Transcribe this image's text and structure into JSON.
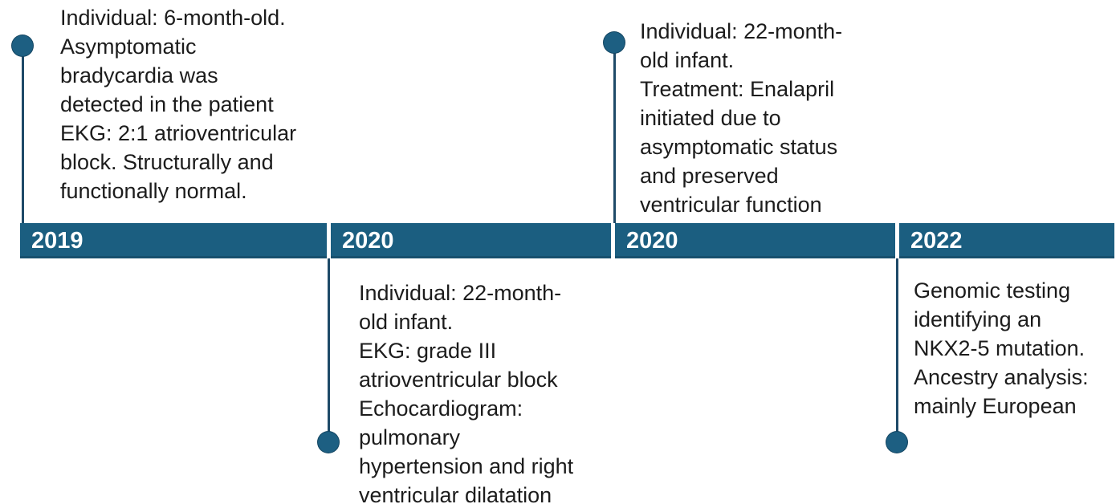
{
  "colors": {
    "background": "#FFFFFF",
    "bar": "#1B5E80",
    "dot": "#1D5F82",
    "connector": "#1E4A68",
    "year-text": "#FFFFFF",
    "body-text": "#1C1C1C"
  },
  "timeline": {
    "segments": [
      {
        "year": "2019"
      },
      {
        "year": "2020"
      },
      {
        "year": "2020"
      },
      {
        "year": "2022"
      }
    ],
    "events": [
      {
        "year": "2019",
        "placement": "above",
        "text": "Individual: 6-month-old.\nAsymptomatic\nbradycardia was\ndetected in the patient\nEKG: 2:1 atrioventricular\nblock. Structurally and\nfunctionally normal."
      },
      {
        "year": "2020",
        "placement": "below",
        "text": "Individual: 22-month-\nold infant.\nEKG: grade III\natrioventricular block\nEchocardiogram:\npulmonary\nhypertension and right\nventricular dilatation"
      },
      {
        "year": "2020",
        "placement": "above",
        "text": "Individual: 22-month-\nold infant.\nTreatment: Enalapril\ninitiated due to\nasymptomatic status\nand preserved\nventricular function"
      },
      {
        "year": "2022",
        "placement": "below",
        "text": "Genomic testing\nidentifying an\nNKX2-5 mutation.\nAncestry analysis:\nmainly European"
      }
    ]
  }
}
